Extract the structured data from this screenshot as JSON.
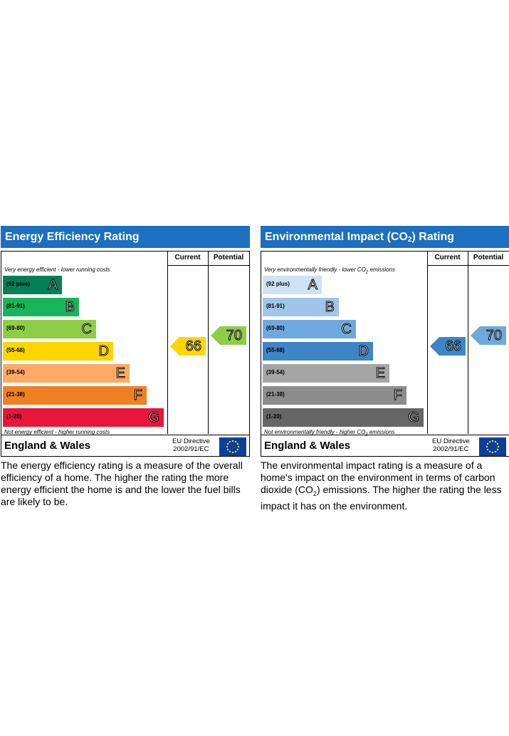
{
  "energy": {
    "title": "Energy Efficiency Rating",
    "col_current": "Current",
    "col_potential": "Potential",
    "top_note": "Very energy efficient - lower running costs",
    "bottom_note": "Not energy efficient - higher running costs",
    "bands": [
      {
        "range": "(92 plus)",
        "letter": "A",
        "color": "#008054"
      },
      {
        "range": "(81-91)",
        "letter": "B",
        "color": "#19b459"
      },
      {
        "range": "(69-80)",
        "letter": "C",
        "color": "#8dce46"
      },
      {
        "range": "(55-68)",
        "letter": "D",
        "color": "#ffd500"
      },
      {
        "range": "(39-54)",
        "letter": "E",
        "color": "#fcaa65"
      },
      {
        "range": "(21-38)",
        "letter": "F",
        "color": "#ef8023"
      },
      {
        "range": "(1-20)",
        "letter": "G",
        "color": "#e9153b"
      }
    ],
    "current": {
      "value": "66",
      "band": "D",
      "color": "#ffd500"
    },
    "potential": {
      "value": "70",
      "band": "C",
      "color": "#8dce46"
    },
    "region": "England & Wales",
    "directive_line1": "EU Directive",
    "directive_line2": "2002/91/EC",
    "description": "The energy efficiency rating is a measure of the overall efficiency of a home. The higher the rating the more energy efficient the home is and the lower the fuel bills are likely to be."
  },
  "environmental": {
    "title_pre": "Environmental Impact (CO",
    "title_sub": "2",
    "title_post": ") Rating",
    "col_current": "Current",
    "col_potential": "Potential",
    "top_note_pre": "Very environmentally friendly - lower CO",
    "top_note_sub": "2",
    "top_note_post": " emissions",
    "bottom_note_pre": "Not environmentally friendly - higher CO",
    "bottom_note_sub": "2",
    "bottom_note_post": " emissions",
    "bands": [
      {
        "range": "(92 plus)",
        "letter": "A",
        "color": "#cfe2f3"
      },
      {
        "range": "(81-91)",
        "letter": "B",
        "color": "#9fc5e8"
      },
      {
        "range": "(69-80)",
        "letter": "C",
        "color": "#6fa8dc"
      },
      {
        "range": "(55-68)",
        "letter": "D",
        "color": "#3d85c6"
      },
      {
        "range": "(39-54)",
        "letter": "E",
        "color": "#a5a5a5"
      },
      {
        "range": "(21-38)",
        "letter": "F",
        "color": "#8c8c8c"
      },
      {
        "range": "(1-20)",
        "letter": "G",
        "color": "#666666"
      }
    ],
    "current": {
      "value": "66",
      "band": "D",
      "color": "#3d85c6"
    },
    "potential": {
      "value": "70",
      "band": "C",
      "color": "#6fa8dc"
    },
    "region": "England & Wales",
    "directive_line1": "EU Directive",
    "directive_line2": "2002/91/EC",
    "description_pre": "The environmental impact rating is a measure of a home's impact on the environment in terms of carbon dioxide (CO",
    "description_sub": "2",
    "description_post": ") emissions. The higher the rating the less impact it has on the environment."
  }
}
